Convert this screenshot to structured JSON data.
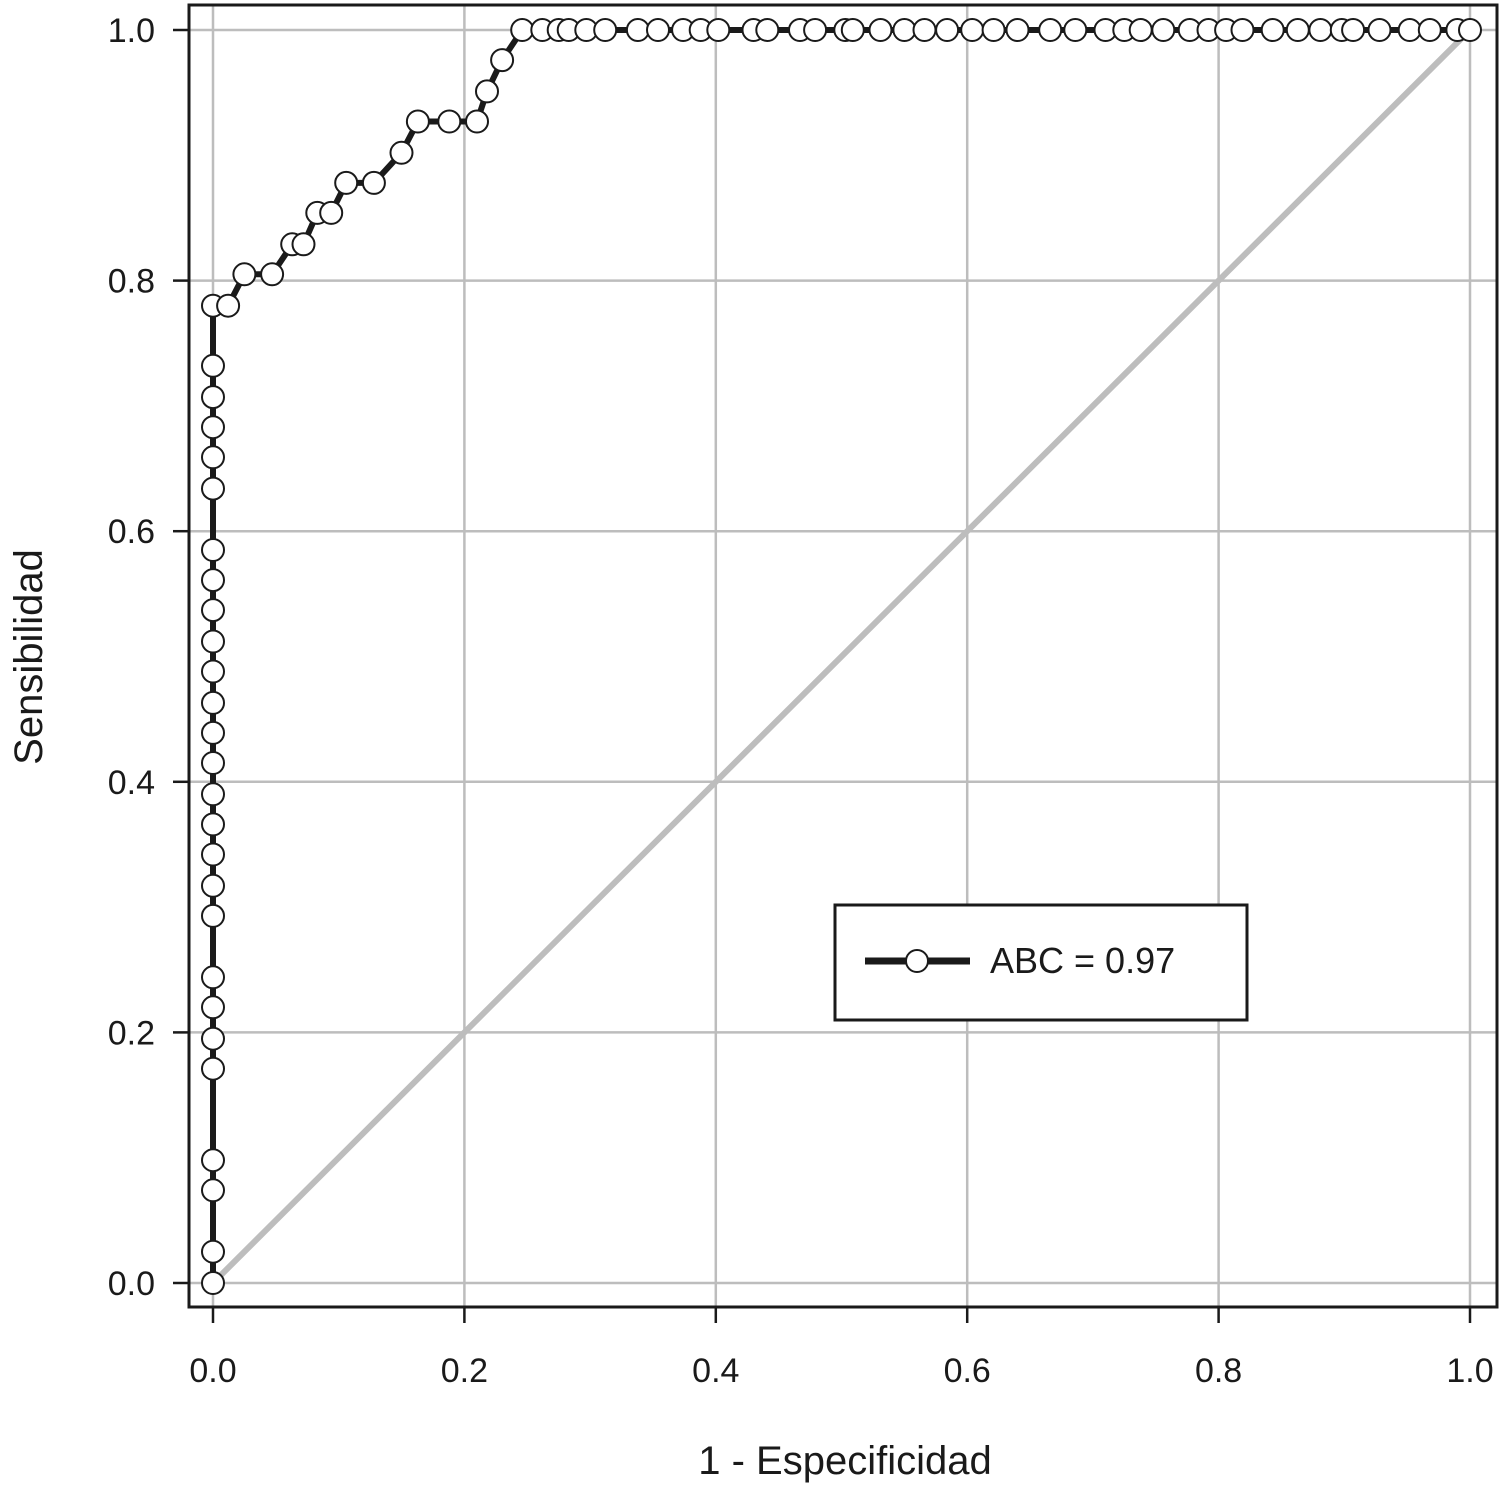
{
  "chart_data": {
    "type": "line",
    "title": "",
    "xlabel": "1 - Especificidad",
    "ylabel": "Sensibilidad",
    "xlim": [
      0,
      1
    ],
    "ylim": [
      0,
      1
    ],
    "x_ticks": [
      "0.0",
      "0.2",
      "0.4",
      "0.6",
      "0.8",
      "1.0"
    ],
    "y_ticks": [
      "0.0",
      "0.2",
      "0.4",
      "0.6",
      "0.8",
      "1.0"
    ],
    "grid": true,
    "legend_position": "center-right",
    "series": [
      {
        "name": "ABC = 0.97",
        "color": "#1a1a1a",
        "marker": "open-circle",
        "points": [
          [
            0.0,
            0.0
          ],
          [
            0.0,
            0.025
          ],
          [
            0.0,
            0.074
          ],
          [
            0.0,
            0.098
          ],
          [
            0.0,
            0.171
          ],
          [
            0.0,
            0.195
          ],
          [
            0.0,
            0.22
          ],
          [
            0.0,
            0.244
          ],
          [
            0.0,
            0.293
          ],
          [
            0.0,
            0.317
          ],
          [
            0.0,
            0.342
          ],
          [
            0.0,
            0.366
          ],
          [
            0.0,
            0.39
          ],
          [
            0.0,
            0.415
          ],
          [
            0.0,
            0.439
          ],
          [
            0.0,
            0.463
          ],
          [
            0.0,
            0.488
          ],
          [
            0.0,
            0.512
          ],
          [
            0.0,
            0.537
          ],
          [
            0.0,
            0.561
          ],
          [
            0.0,
            0.585
          ],
          [
            0.0,
            0.634
          ],
          [
            0.0,
            0.659
          ],
          [
            0.0,
            0.683
          ],
          [
            0.0,
            0.707
          ],
          [
            0.0,
            0.732
          ],
          [
            0.0,
            0.78
          ],
          [
            0.012,
            0.78
          ],
          [
            0.025,
            0.805
          ],
          [
            0.047,
            0.805
          ],
          [
            0.063,
            0.829
          ],
          [
            0.072,
            0.829
          ],
          [
            0.083,
            0.854
          ],
          [
            0.094,
            0.854
          ],
          [
            0.106,
            0.878
          ],
          [
            0.128,
            0.878
          ],
          [
            0.15,
            0.902
          ],
          [
            0.163,
            0.927
          ],
          [
            0.188,
            0.927
          ],
          [
            0.21,
            0.927
          ],
          [
            0.218,
            0.951
          ],
          [
            0.23,
            0.976
          ],
          [
            0.246,
            1.0
          ],
          [
            0.262,
            1.0
          ],
          [
            0.275,
            1.0
          ],
          [
            0.283,
            1.0
          ],
          [
            0.297,
            1.0
          ],
          [
            0.312,
            1.0
          ],
          [
            0.338,
            1.0
          ],
          [
            0.354,
            1.0
          ],
          [
            0.374,
            1.0
          ],
          [
            0.388,
            1.0
          ],
          [
            0.402,
            1.0
          ],
          [
            0.43,
            1.0
          ],
          [
            0.441,
            1.0
          ],
          [
            0.467,
            1.0
          ],
          [
            0.479,
            1.0
          ],
          [
            0.503,
            1.0
          ],
          [
            0.509,
            1.0
          ],
          [
            0.531,
            1.0
          ],
          [
            0.55,
            1.0
          ],
          [
            0.566,
            1.0
          ],
          [
            0.584,
            1.0
          ],
          [
            0.604,
            1.0
          ],
          [
            0.621,
            1.0
          ],
          [
            0.64,
            1.0
          ],
          [
            0.666,
            1.0
          ],
          [
            0.686,
            1.0
          ],
          [
            0.71,
            1.0
          ],
          [
            0.725,
            1.0
          ],
          [
            0.738,
            1.0
          ],
          [
            0.756,
            1.0
          ],
          [
            0.777,
            1.0
          ],
          [
            0.792,
            1.0
          ],
          [
            0.806,
            1.0
          ],
          [
            0.819,
            1.0
          ],
          [
            0.843,
            1.0
          ],
          [
            0.863,
            1.0
          ],
          [
            0.881,
            1.0
          ],
          [
            0.898,
            1.0
          ],
          [
            0.907,
            1.0
          ],
          [
            0.928,
            1.0
          ],
          [
            0.952,
            1.0
          ],
          [
            0.968,
            1.0
          ],
          [
            0.99,
            1.0
          ],
          [
            1.0,
            1.0
          ]
        ]
      },
      {
        "name": "",
        "color": "#bdbdbd",
        "marker": "none",
        "points": [
          [
            0,
            0
          ],
          [
            1,
            1
          ]
        ]
      }
    ]
  }
}
